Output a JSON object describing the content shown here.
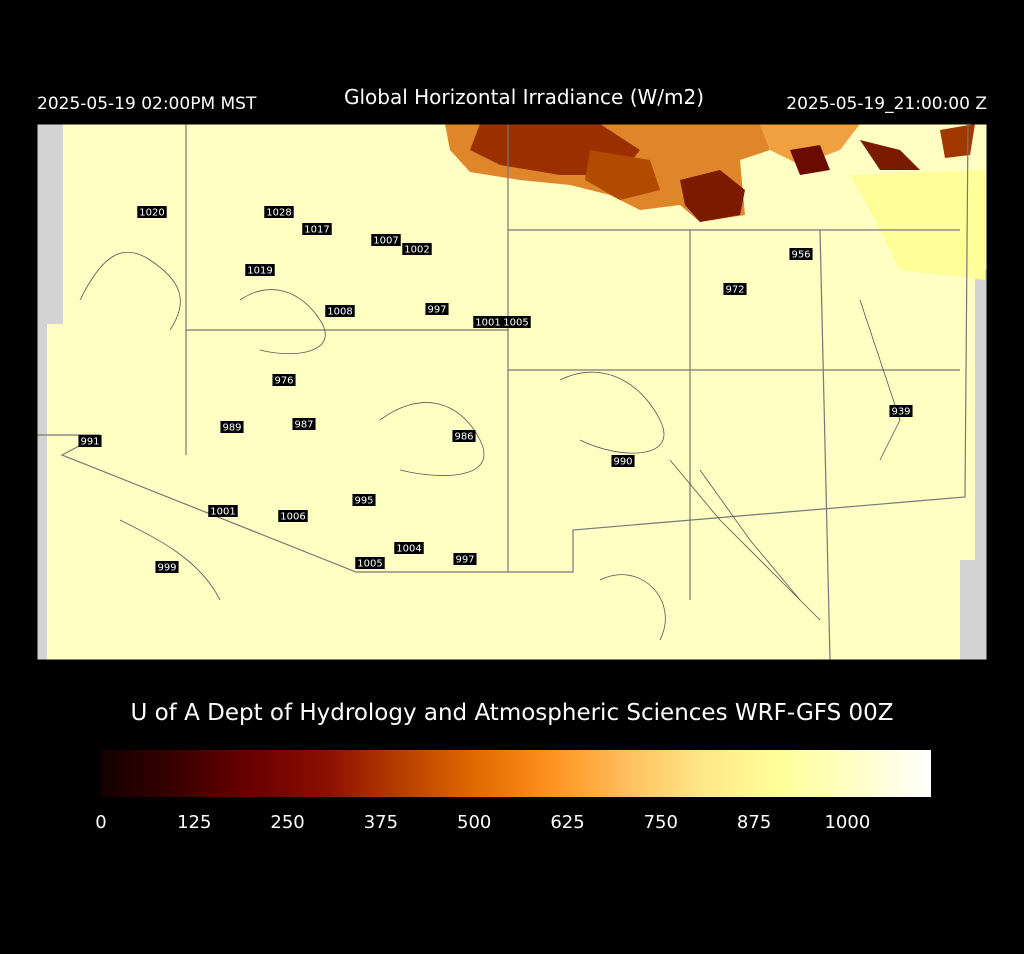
{
  "header": {
    "left": "2025-05-19 02:00PM MST",
    "title": "Global Horizontal Irradiance (W/m2)",
    "right": "2025-05-19_21:00:00 Z"
  },
  "map": {
    "station_values": [
      1020,
      1028,
      1017,
      1007,
      1002,
      1019,
      1008,
      997,
      1001,
      1005,
      956,
      972,
      976,
      939,
      989,
      987,
      991,
      986,
      990,
      995,
      1001,
      1006,
      1004,
      997,
      1005,
      999
    ]
  },
  "credit": "U of A Dept of Hydrology and Atmospheric Sciences WRF-GFS 00Z",
  "colorbar": {
    "min": 0,
    "max": 1112,
    "ticks": [
      0,
      125,
      250,
      375,
      500,
      625,
      750,
      875,
      1000
    ],
    "colors": [
      "#140000",
      "#3a0000",
      "#6a0000",
      "#8c1000",
      "#b84000",
      "#e46a00",
      "#ff9420",
      "#ffc060",
      "#ffe888",
      "#ffff99",
      "#ffffc8",
      "#ffffff"
    ]
  }
}
